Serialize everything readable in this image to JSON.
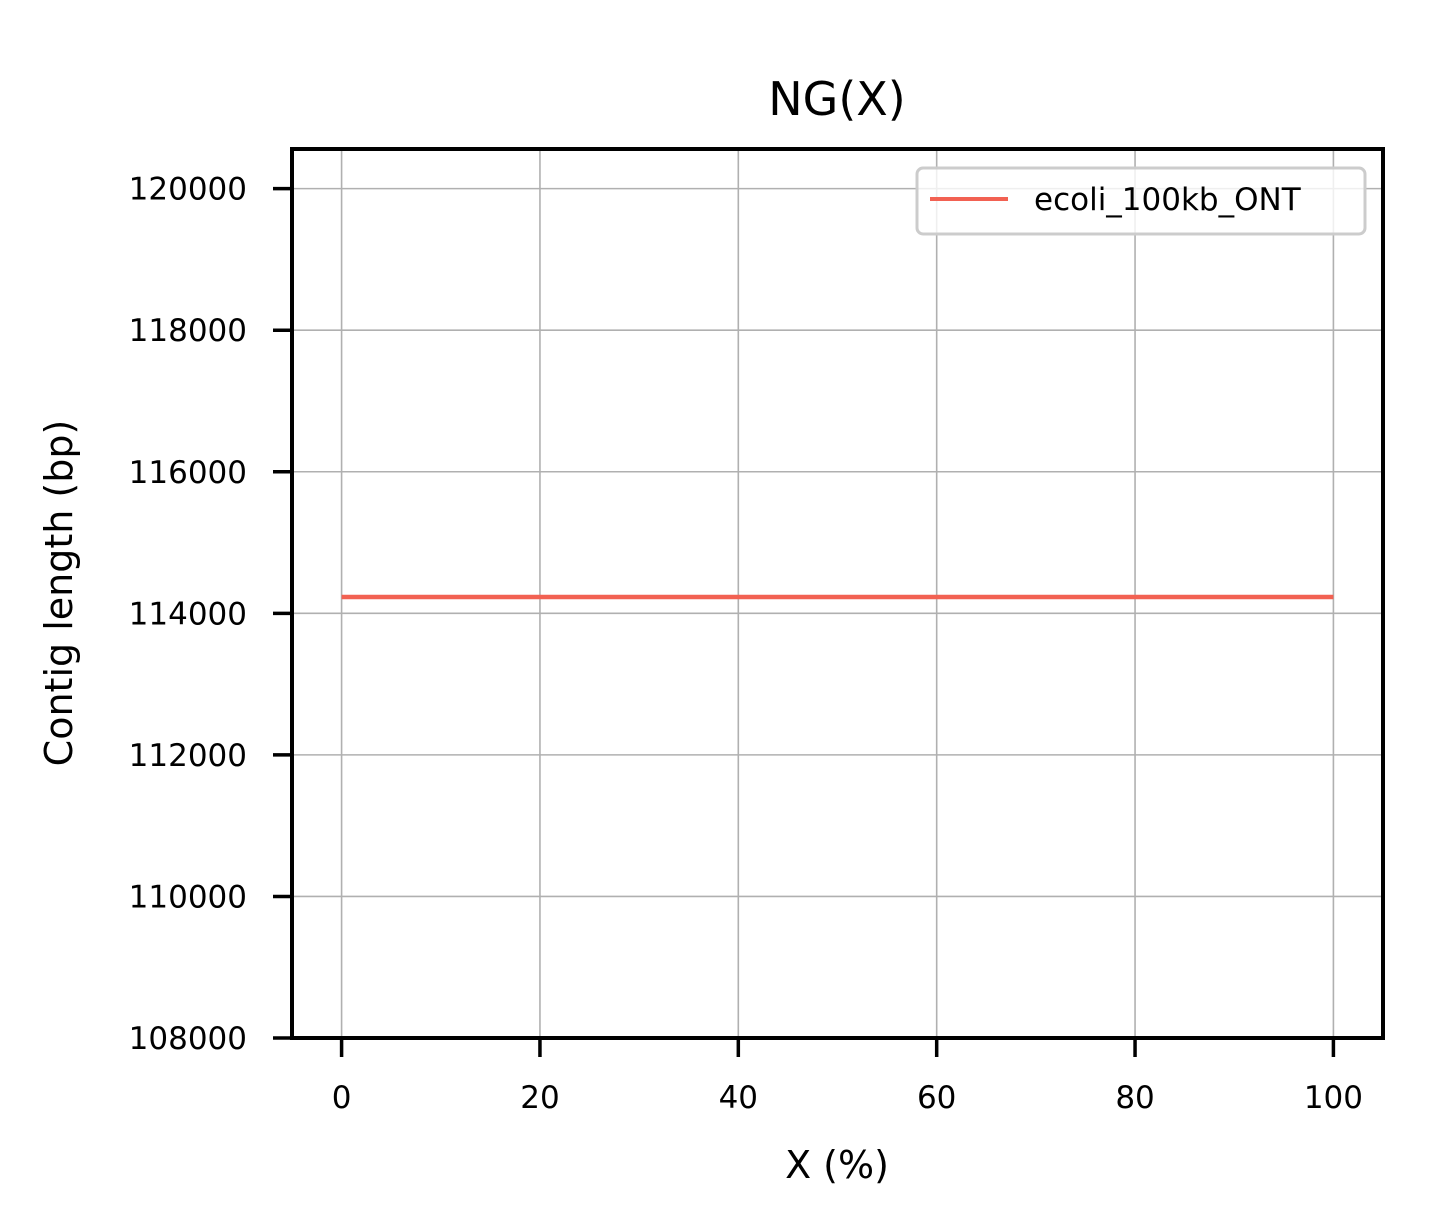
{
  "chart_data": {
    "type": "line",
    "title": "NG(X)",
    "xlabel": "X (%)",
    "ylabel": "Contig length (bp)",
    "xlim": [
      -5,
      105
    ],
    "ylim": [
      108000,
      120560
    ],
    "x_ticks": [
      0,
      20,
      40,
      60,
      80,
      100
    ],
    "x_tick_labels": [
      "0",
      "20",
      "40",
      "60",
      "80",
      "100"
    ],
    "y_ticks": [
      108000,
      110000,
      112000,
      114000,
      116000,
      118000,
      120000
    ],
    "y_tick_labels": [
      "108000",
      "110000",
      "112000",
      "114000",
      "116000",
      "118000",
      "120000"
    ],
    "grid": true,
    "legend_position": "top-right",
    "series": [
      {
        "name": "ecoli_100kb_ONT",
        "color": "#f26152",
        "x": [
          0,
          100
        ],
        "y": [
          114230,
          114230
        ]
      }
    ]
  }
}
